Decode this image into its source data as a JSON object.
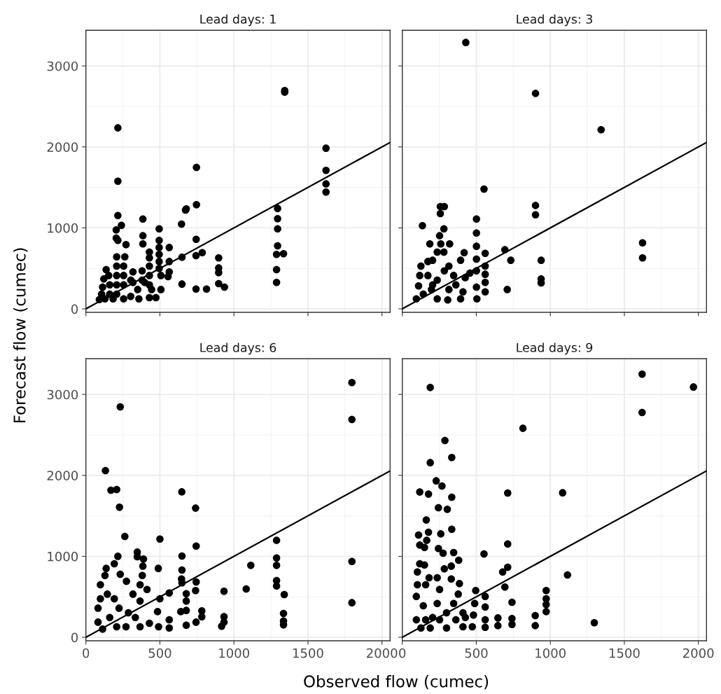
{
  "chart_data": [
    {
      "type": "scatter",
      "title": "Lead days: 1",
      "xlabel": "Observed flow (cumec)",
      "ylabel": "Forecast flow (cumec)",
      "xlim": [
        0,
        2055
      ],
      "ylim": [
        -43,
        3440
      ],
      "xticks": [
        0,
        500,
        1000,
        1500,
        2000
      ],
      "yticks": [
        0,
        1000,
        2000,
        3000
      ],
      "grid": true,
      "tick_labels": "y",
      "series": [
        {
          "color": "#000000",
          "marker": "circle",
          "x": [
            216,
            216,
            1343,
            1343,
            1622,
            1622,
            1622,
            1622,
            747,
            747,
            678,
            673,
            646,
            745,
            744,
            786,
            649,
            649,
            744,
            815,
            897,
            897,
            897,
            897,
            936,
            1295,
            1295,
            1295,
            1295,
            1288,
            1335,
            1288,
            1288,
            216,
            240,
            205,
            205,
            216,
            271,
            385,
            385,
            385,
            495,
            495,
            495,
            495,
            495,
            495,
            507,
            507,
            563,
            563,
            563,
            555,
            473,
            429,
            429,
            429,
            429,
            429,
            429,
            380,
            380,
            358,
            318,
            318,
            303,
            255,
            263,
            255,
            255,
            255,
            208,
            208,
            208,
            208,
            208,
            184,
            137,
            121,
            113,
            106,
            91,
            129,
            161,
            161,
            154,
            303,
            350,
            397,
            444
          ],
          "values": [
            2235,
            1577,
            2696,
            2676,
            1984,
            1710,
            1543,
            1442,
            1747,
            1286,
            1234,
            1220,
            1047,
            859,
            657,
            695,
            637,
            306,
            245,
            245,
            629,
            505,
            447,
            311,
            268,
            1240,
            1113,
            989,
            779,
            672,
            681,
            484,
            326,
            1153,
            1032,
            975,
            874,
            845,
            793,
            1110,
            903,
            802,
            989,
            845,
            758,
            672,
            585,
            499,
            412,
            239,
            758,
            585,
            456,
            398,
            138,
            700,
            629,
            528,
            412,
            297,
            138,
            470,
            355,
            124,
            456,
            326,
            153,
            124,
            643,
            528,
            412,
            297,
            643,
            528,
            412,
            297,
            182,
            124,
            484,
            369,
            268,
            182,
            115,
            124,
            297,
            182,
            412,
            355,
            239,
            326,
            239
          ]
        },
        {
          "type": "line",
          "color": "#000000",
          "x": [
            0,
            2055
          ],
          "values": [
            0,
            2055
          ]
        }
      ]
    },
    {
      "type": "scatter",
      "title": "Lead days: 3",
      "xlim": [
        0,
        2055
      ],
      "ylim": [
        -43,
        3440
      ],
      "xticks": [
        0,
        500,
        1000,
        1500,
        2000
      ],
      "yticks": [
        0,
        1000,
        2000,
        3000
      ],
      "grid": true,
      "tick_labels": false,
      "series": [
        {
          "color": "#000000",
          "marker": "circle",
          "x": [
            429,
            900,
            1343,
            552,
            900,
            900,
            136,
            257,
            284,
            257,
            281,
            252,
            186,
            320,
            260,
            236,
            281,
            205,
            501,
            501,
            501,
            501,
            501,
            501,
            504,
            560,
            560,
            560,
            560,
            560,
            418,
            394,
            693,
            733,
            709,
            938,
            938,
            938,
            1623,
            1623,
            126,
            118,
            110,
            95,
            142,
            173,
            197,
            236,
            236,
            284,
            315,
            315,
            347,
            307,
            362,
            410,
            425,
            394,
            457,
            173,
            205
          ],
          "values": [
            3290,
            2661,
            2212,
            1479,
            1277,
            1162,
            1027,
            1263,
            1263,
            1176,
            989,
            903,
            802,
            802,
            802,
            701,
            701,
            600,
            1110,
            937,
            773,
            614,
            470,
            268,
            124,
            686,
            528,
            427,
            326,
            210,
            695,
            600,
            730,
            600,
            239,
            600,
            369,
            320,
            816,
            629,
            528,
            412,
            283,
            124,
            182,
            412,
            239,
            124,
            355,
            470,
            528,
            239,
            412,
            110,
            297,
            210,
            384,
            124,
            441,
            585,
            297
          ]
        },
        {
          "type": "line",
          "color": "#000000",
          "x": [
            0,
            2055
          ],
          "values": [
            0,
            2055
          ]
        }
      ]
    },
    {
      "type": "scatter",
      "title": "Lead days: 6",
      "xlim": [
        0,
        2055
      ],
      "ylim": [
        -43,
        3440
      ],
      "xticks": [
        0,
        500,
        1000,
        1500,
        2000
      ],
      "yticks": [
        0,
        1000,
        2000,
        3000
      ],
      "grid": true,
      "series": [
        {
          "color": "#000000",
          "marker": "circle",
          "x": [
            1797,
            1797,
            232,
            132,
            169,
            208,
            227,
            648,
            741,
            263,
            500,
            745,
            649,
            489,
            649,
            646,
            649,
            745,
            741,
            1288,
            1288,
            1288,
            1288,
            1288,
            1340,
            1335,
            1335,
            1335,
            1114,
            1083,
            933,
            933,
            933,
            917,
            1797,
            1797,
            783,
            783,
            744,
            678,
            678,
            678,
            678,
            641,
            563,
            563,
            563,
            500,
            484,
            491,
            429,
            347,
            347,
            389,
            385,
            381,
            366,
            413,
            366,
            366,
            216,
            192,
            232,
            274,
            137,
            129,
            98,
            82,
            82,
            113,
            161,
            192,
            224,
            271,
            287,
            318,
            334,
            145,
            208,
            98
          ],
          "values": [
            3146,
            2690,
            2846,
            2059,
            1817,
            1825,
            1606,
            1796,
            1595,
            1246,
            1214,
            1127,
            1003,
            851,
            830,
            721,
            672,
            683,
            577,
            1197,
            980,
            888,
            701,
            634,
            528,
            294,
            202,
            153,
            888,
            597,
            568,
            254,
            187,
            136,
            937,
            427,
            326,
            254,
            187,
            539,
            447,
            332,
            150,
            317,
            548,
            216,
            115,
            476,
            317,
            130,
            173,
            1052,
            995,
            966,
            879,
            764,
            649,
            591,
            447,
            130,
            1000,
            908,
            779,
            692,
            851,
            764,
            649,
            360,
            187,
            101,
            245,
            476,
            360,
            130,
            303,
            533,
            245,
            533,
            130,
            476
          ]
        },
        {
          "type": "line",
          "color": "#000000",
          "x": [
            0,
            2055
          ],
          "values": [
            0,
            2055
          ]
        }
      ]
    },
    {
      "type": "scatter",
      "title": "Lead days: 9",
      "xlim": [
        0,
        2055
      ],
      "ylim": [
        -43,
        3440
      ],
      "xticks": [
        0,
        500,
        1000,
        1500,
        2000
      ],
      "yticks": [
        0,
        1000,
        2000,
        3000
      ],
      "grid": true,
      "tick_labels": "x",
      "series": [
        {
          "color": "#000000",
          "marker": "circle",
          "x": [
            189,
            1620,
            1620,
            1967,
            815,
            288,
            334,
            189,
            229,
            268,
            118,
            177,
            334,
            712,
            1083,
            244,
            304,
            162,
            334,
            177,
            260,
            110,
            165,
            118,
            150,
            244,
            276,
            347,
            712,
            552,
            381,
            118,
            150,
            284,
            331,
            678,
            712,
            1116,
            693,
            102,
            181,
            236,
            331,
            386,
            102,
            158,
            496,
            560,
            741,
            972,
            972,
            972,
            972,
            898,
            898,
            646,
            646,
            741,
            741,
            1297,
            560,
            560,
            560,
            489,
            481,
            473,
            410,
            410,
            378,
            347,
            299,
            299,
            252,
            236,
            205,
            189,
            126,
            95,
            95,
            142,
            158,
            252,
            362,
            426
          ],
          "values": [
            3085,
            3250,
            2777,
            3091,
            2581,
            2431,
            2220,
            2157,
            1932,
            1869,
            1794,
            1768,
            1730,
            1782,
            1785,
            1600,
            1580,
            1448,
            1335,
            1298,
            1277,
            1263,
            1197,
            1139,
            1110,
            1096,
            1038,
            1047,
            1153,
            1029,
            952,
            908,
            894,
            845,
            879,
            807,
            865,
            770,
            620,
            807,
            735,
            735,
            721,
            663,
            649,
            649,
            577,
            505,
            433,
            577,
            476,
            404,
            317,
            268,
            144,
            239,
            144,
            231,
            159,
            179,
            375,
            216,
            124,
            418,
            274,
            130,
            303,
            130,
            533,
            418,
            303,
            115,
            591,
            418,
            245,
            115,
            115,
            216,
            505,
            389,
            216,
            216,
            216,
            245
          ]
        },
        {
          "type": "line",
          "color": "#000000",
          "x": [
            0,
            2055
          ],
          "values": [
            0,
            2055
          ]
        }
      ]
    }
  ]
}
